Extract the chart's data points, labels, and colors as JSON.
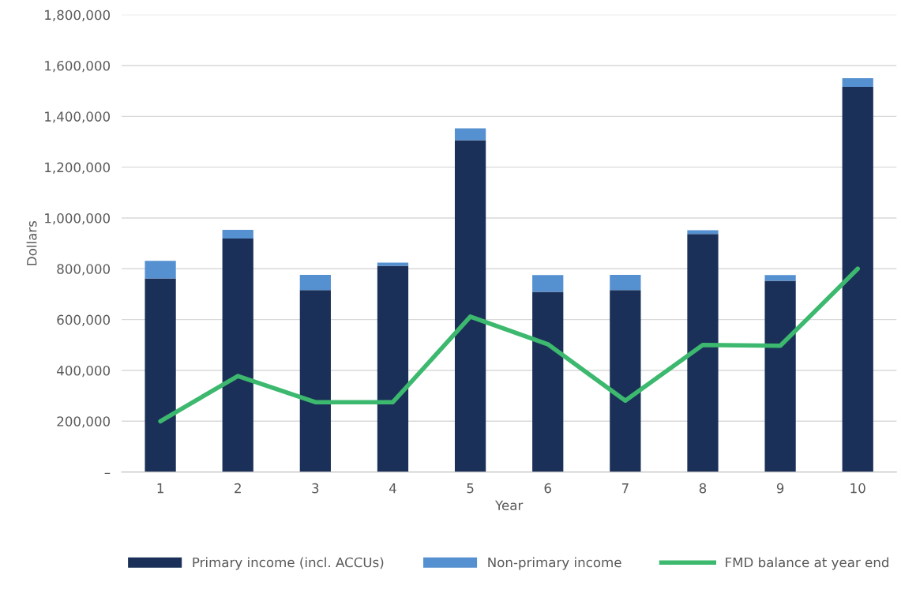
{
  "chart_data": {
    "type": "bar",
    "stacked": true,
    "xlabel": "Year",
    "ylabel": "Dollars",
    "categories": [
      "1",
      "2",
      "3",
      "4",
      "5",
      "6",
      "7",
      "8",
      "9",
      "10"
    ],
    "series": [
      {
        "name": "Primary income (incl. ACCUs)",
        "color": "#1b3058",
        "values": [
          762000,
          919000,
          716000,
          812000,
          1306000,
          709000,
          716000,
          937000,
          753000,
          1516000
        ]
      },
      {
        "name": "Non-primary income",
        "color": "#5590d0",
        "values": [
          69000,
          34000,
          60000,
          12000,
          47000,
          66000,
          60000,
          15000,
          22000,
          34000
        ]
      },
      {
        "name": "FMD balance at year end",
        "type": "line",
        "color": "#3cb96e",
        "marker": "none",
        "values": [
          200000,
          378000,
          275000,
          275000,
          612000,
          503000,
          281000,
          500000,
          497000,
          800000
        ]
      }
    ],
    "ylim": [
      0,
      1800000
    ],
    "yticks": [
      {
        "value": 0,
        "label": "–"
      },
      {
        "value": 200000,
        "label": "200,000"
      },
      {
        "value": 400000,
        "label": "400,000"
      },
      {
        "value": 600000,
        "label": "600,000"
      },
      {
        "value": 800000,
        "label": "800,000"
      },
      {
        "value": 1000000,
        "label": "1,000,000"
      },
      {
        "value": 1200000,
        "label": "1,200,000"
      },
      {
        "value": 1400000,
        "label": "1,400,000"
      },
      {
        "value": 1600000,
        "label": "1,600,000"
      },
      {
        "value": 1800000,
        "label": "1,800,000"
      }
    ],
    "grid": "y",
    "legend": "bottom"
  }
}
